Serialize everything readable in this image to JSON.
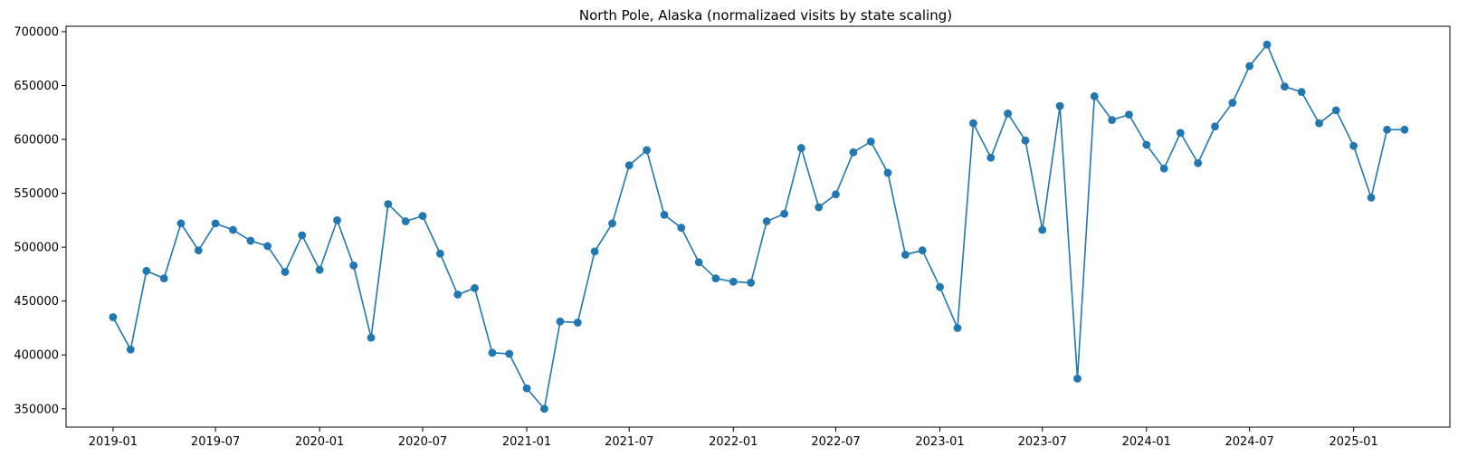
{
  "chart_data": {
    "type": "line",
    "title": "North Pole, Alaska (normalizaed visits by state scaling)",
    "xlabel": "",
    "ylabel": "",
    "x_ticks": [
      "2019-01",
      "2019-07",
      "2020-01",
      "2020-07",
      "2021-01",
      "2021-07",
      "2022-01",
      "2022-07",
      "2023-01",
      "2023-07",
      "2024-01",
      "2024-07",
      "2025-01"
    ],
    "y_ticks": [
      "350000",
      "400000",
      "450000",
      "500000",
      "550000",
      "600000",
      "650000",
      "700000"
    ],
    "xlim": [
      "2018-10-10",
      "2025-06-20"
    ],
    "ylim": [
      333000,
      705000
    ],
    "grid": false,
    "legend": "none",
    "series": [
      {
        "color": "#1f77b4",
        "marker": "circle",
        "x": [
          "2019-01-01",
          "2019-02-01",
          "2019-03-01",
          "2019-04-01",
          "2019-05-01",
          "2019-06-01",
          "2019-07-01",
          "2019-08-01",
          "2019-09-01",
          "2019-10-01",
          "2019-11-01",
          "2019-12-01",
          "2020-01-01",
          "2020-02-01",
          "2020-03-01",
          "2020-04-01",
          "2020-05-01",
          "2020-06-01",
          "2020-07-01",
          "2020-08-01",
          "2020-09-01",
          "2020-10-01",
          "2020-11-01",
          "2020-12-01",
          "2021-01-01",
          "2021-02-01",
          "2021-03-01",
          "2021-04-01",
          "2021-05-01",
          "2021-06-01",
          "2021-07-01",
          "2021-08-01",
          "2021-09-01",
          "2021-10-01",
          "2021-11-01",
          "2021-12-01",
          "2022-01-01",
          "2022-02-01",
          "2022-03-01",
          "2022-04-01",
          "2022-05-01",
          "2022-06-01",
          "2022-07-01",
          "2022-08-01",
          "2022-09-01",
          "2022-10-01",
          "2022-11-01",
          "2022-12-01",
          "2023-01-01",
          "2023-02-01",
          "2023-03-01",
          "2023-04-01",
          "2023-05-01",
          "2023-06-01",
          "2023-07-01",
          "2023-08-01",
          "2023-09-01",
          "2023-10-01",
          "2023-11-01",
          "2023-12-01",
          "2024-01-01",
          "2024-02-01",
          "2024-03-01",
          "2024-04-01",
          "2024-05-01",
          "2024-06-01",
          "2024-07-01",
          "2024-08-01",
          "2024-09-01",
          "2024-10-01",
          "2024-11-01",
          "2024-12-01",
          "2025-01-01",
          "2025-02-01",
          "2025-03-01",
          "2025-04-01"
        ],
        "y": [
          435000,
          405000,
          478000,
          471000,
          522000,
          497000,
          522000,
          516000,
          506000,
          501000,
          477000,
          511000,
          479000,
          525000,
          483000,
          416000,
          540000,
          524000,
          529000,
          494000,
          456000,
          462000,
          402000,
          401000,
          369000,
          350000,
          431000,
          430000,
          496000,
          522000,
          576000,
          590000,
          530000,
          518000,
          486000,
          471000,
          468000,
          467000,
          524000,
          531000,
          592000,
          537000,
          549000,
          588000,
          598000,
          569000,
          493000,
          497000,
          463000,
          425000,
          615000,
          583000,
          624000,
          599000,
          516000,
          631000,
          378000,
          640000,
          618000,
          623000,
          595000,
          573000,
          606000,
          578000,
          612000,
          634000,
          668000,
          688000,
          649000,
          644000,
          615000,
          627000,
          594000,
          546000,
          609000,
          609000
        ]
      }
    ]
  }
}
